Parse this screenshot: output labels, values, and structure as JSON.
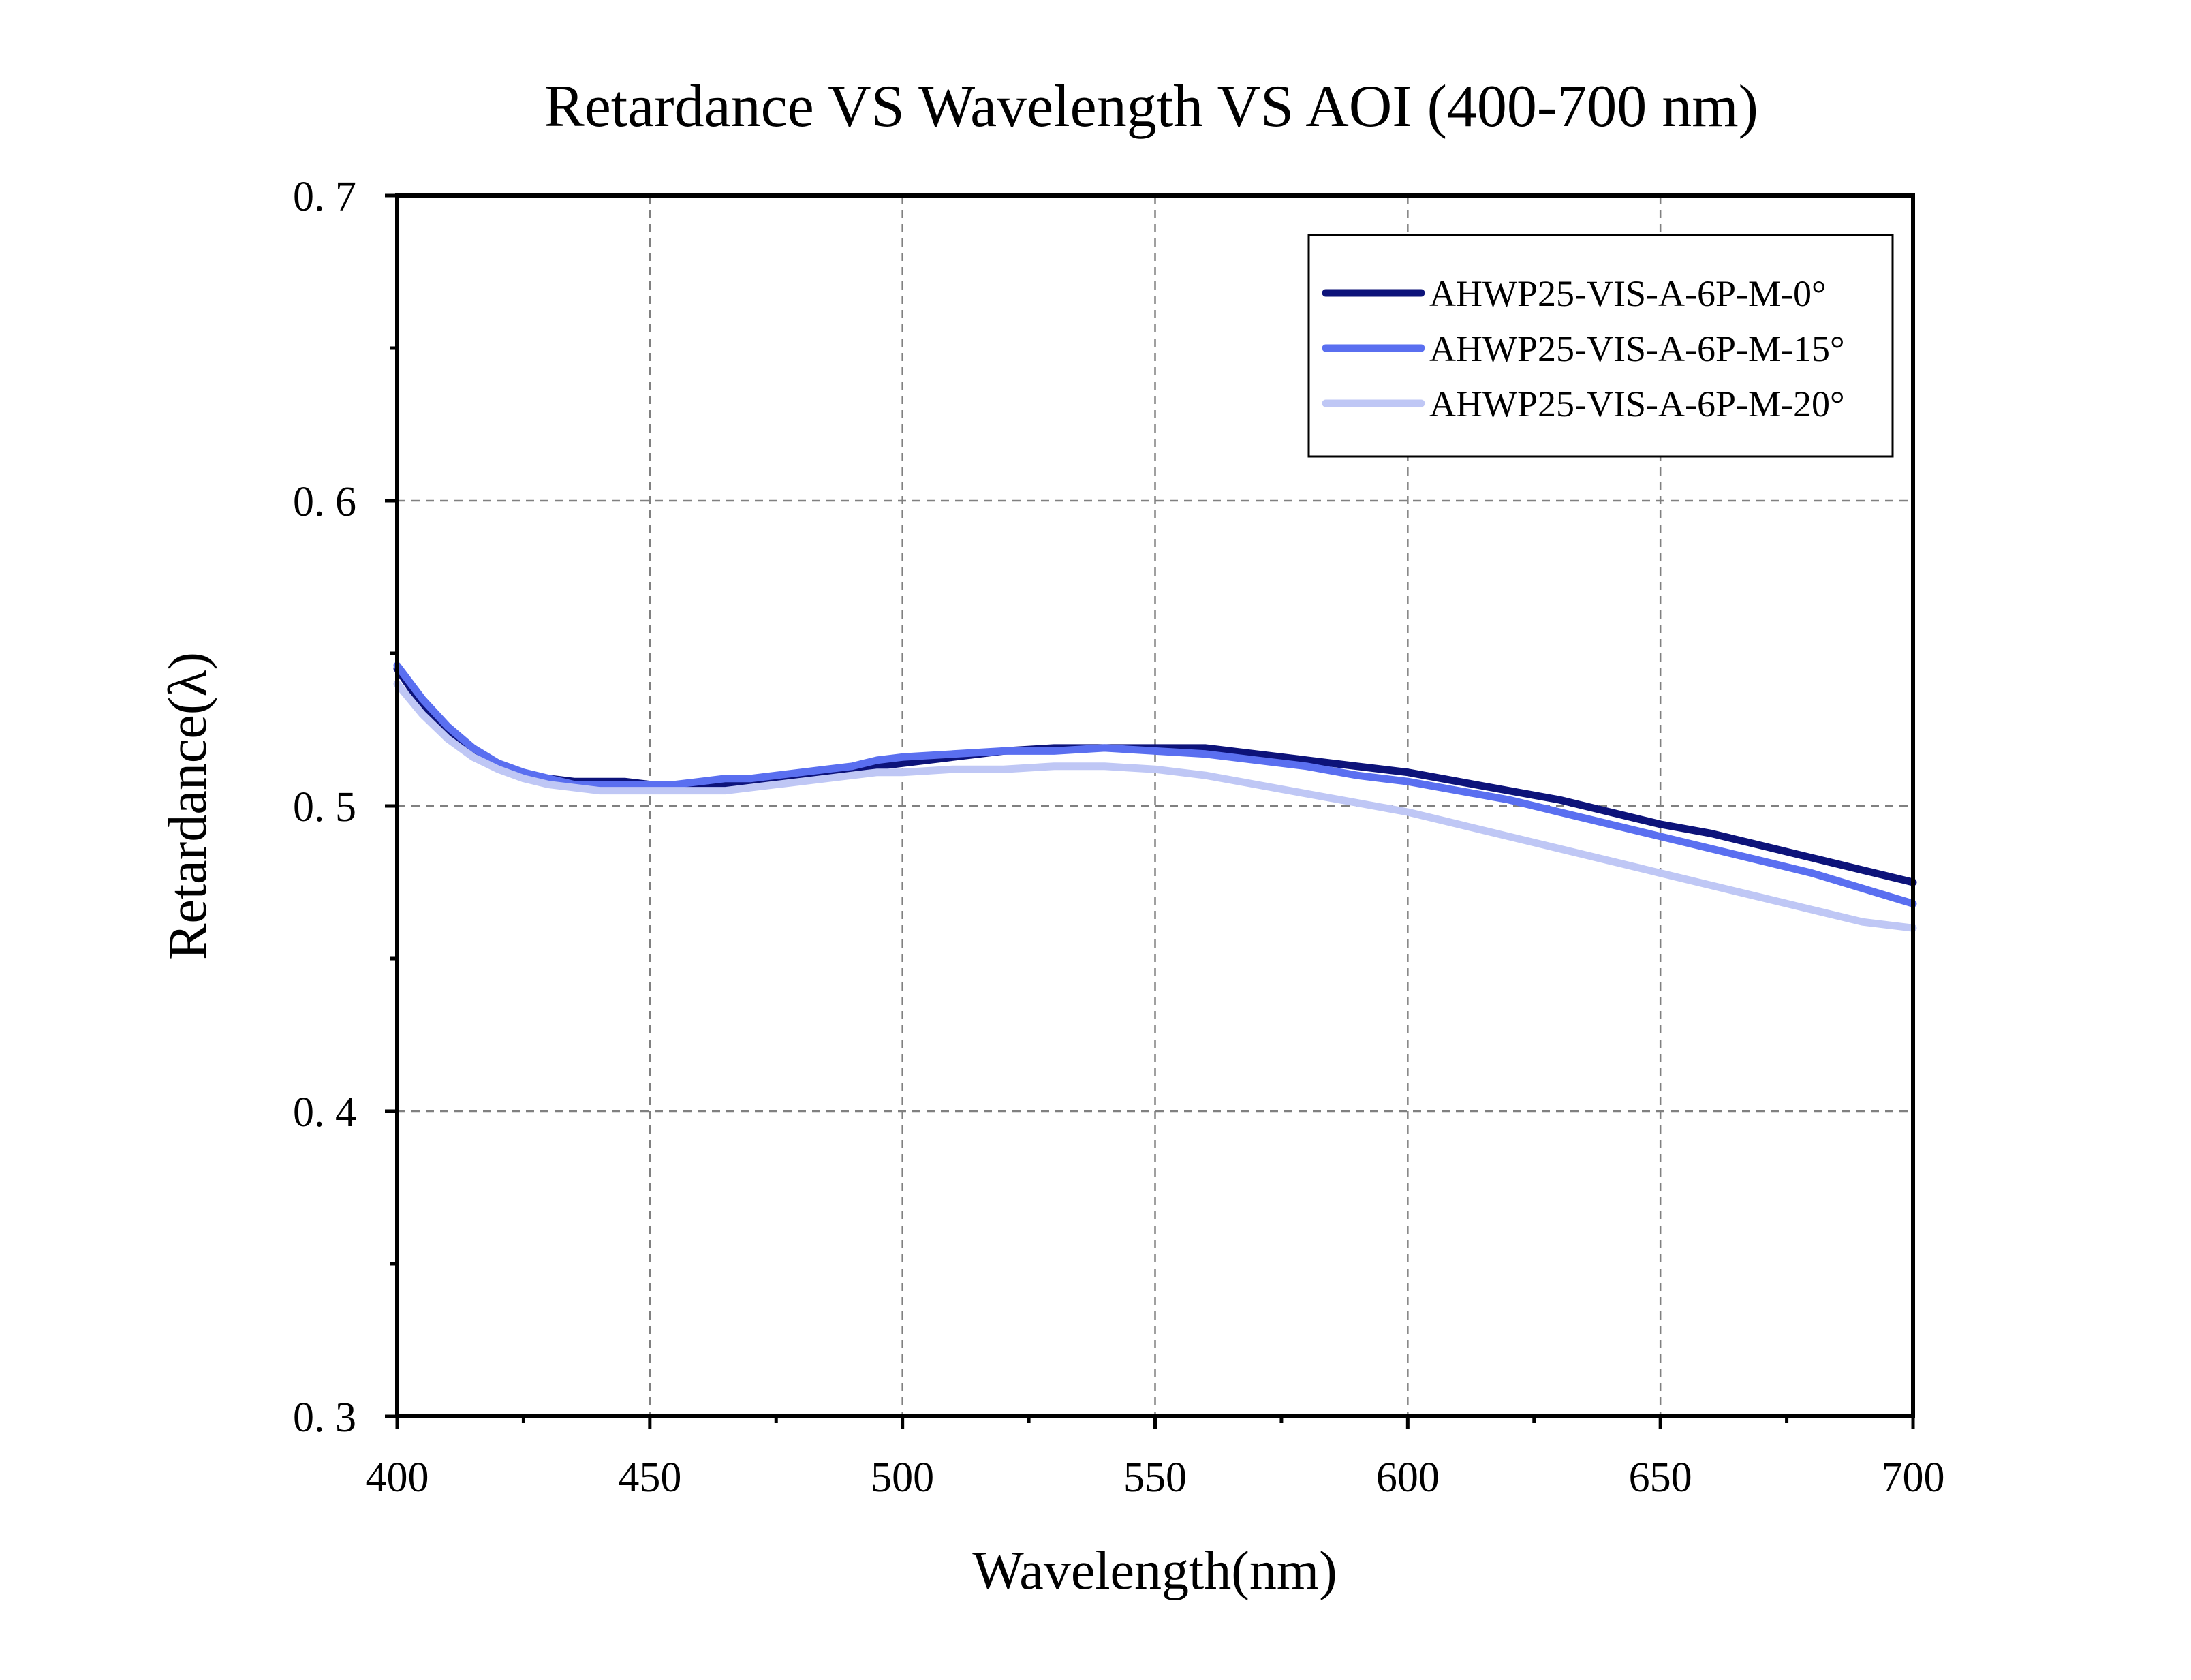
{
  "chart_data": {
    "type": "line",
    "title": "Retardance VS Wavelength VS AOI (400-700 nm)",
    "xlabel": "Wavelength(nm)",
    "ylabel": "Retardance(λ)",
    "xlim": [
      400,
      700
    ],
    "ylim": [
      0.3,
      0.7
    ],
    "x_ticks": [
      400,
      450,
      500,
      550,
      600,
      650,
      700
    ],
    "x_tick_labels": [
      "400",
      "450",
      "500",
      "550",
      "600",
      "650",
      "700"
    ],
    "y_ticks": [
      0.3,
      0.4,
      0.5,
      0.6,
      0.7
    ],
    "y_tick_labels": [
      "0. 3",
      "0. 4",
      "0. 5",
      "0. 6",
      "0. 7"
    ],
    "grid": true,
    "legend_position": "top-right",
    "series": [
      {
        "name": "AHWP25-VIS-A-6P-M-0°",
        "color": "#0d137a",
        "x": [
          400,
          405,
          410,
          415,
          420,
          425,
          430,
          435,
          440,
          445,
          450,
          455,
          460,
          465,
          470,
          475,
          480,
          485,
          490,
          495,
          500,
          510,
          520,
          530,
          540,
          550,
          560,
          570,
          580,
          590,
          600,
          610,
          620,
          630,
          640,
          650,
          660,
          670,
          680,
          690,
          700
        ],
        "y": [
          0.545,
          0.533,
          0.524,
          0.517,
          0.513,
          0.51,
          0.509,
          0.508,
          0.508,
          0.508,
          0.507,
          0.507,
          0.507,
          0.507,
          0.508,
          0.509,
          0.51,
          0.511,
          0.512,
          0.513,
          0.514,
          0.516,
          0.518,
          0.519,
          0.519,
          0.519,
          0.519,
          0.517,
          0.515,
          0.513,
          0.511,
          0.508,
          0.505,
          0.502,
          0.498,
          0.494,
          0.491,
          0.487,
          0.483,
          0.479,
          0.475
        ]
      },
      {
        "name": "AHWP25-VIS-A-6P-M-15°",
        "color": "#5a6ff0",
        "x": [
          400,
          405,
          410,
          415,
          420,
          425,
          430,
          435,
          440,
          445,
          450,
          455,
          460,
          465,
          470,
          475,
          480,
          485,
          490,
          495,
          500,
          510,
          520,
          530,
          540,
          550,
          560,
          570,
          580,
          590,
          600,
          610,
          620,
          630,
          640,
          650,
          660,
          670,
          680,
          690,
          700
        ],
        "y": [
          0.546,
          0.535,
          0.526,
          0.519,
          0.514,
          0.511,
          0.509,
          0.507,
          0.507,
          0.507,
          0.507,
          0.507,
          0.508,
          0.509,
          0.509,
          0.51,
          0.511,
          0.512,
          0.513,
          0.515,
          0.516,
          0.517,
          0.518,
          0.518,
          0.519,
          0.518,
          0.517,
          0.515,
          0.513,
          0.51,
          0.508,
          0.505,
          0.502,
          0.498,
          0.494,
          0.49,
          0.486,
          0.482,
          0.478,
          0.473,
          0.468
        ]
      },
      {
        "name": "AHWP25-VIS-A-6P-M-20°",
        "color": "#bfc7f5",
        "x": [
          400,
          405,
          410,
          415,
          420,
          425,
          430,
          435,
          440,
          445,
          450,
          455,
          460,
          465,
          470,
          475,
          480,
          485,
          490,
          495,
          500,
          510,
          520,
          530,
          540,
          550,
          560,
          570,
          580,
          590,
          600,
          610,
          620,
          630,
          640,
          650,
          660,
          670,
          680,
          690,
          700
        ],
        "y": [
          0.54,
          0.53,
          0.522,
          0.516,
          0.512,
          0.509,
          0.507,
          0.506,
          0.505,
          0.505,
          0.505,
          0.505,
          0.505,
          0.505,
          0.506,
          0.507,
          0.508,
          0.509,
          0.51,
          0.511,
          0.511,
          0.512,
          0.512,
          0.513,
          0.513,
          0.512,
          0.51,
          0.507,
          0.504,
          0.501,
          0.498,
          0.494,
          0.49,
          0.486,
          0.482,
          0.478,
          0.474,
          0.47,
          0.466,
          0.462,
          0.46
        ]
      }
    ]
  }
}
